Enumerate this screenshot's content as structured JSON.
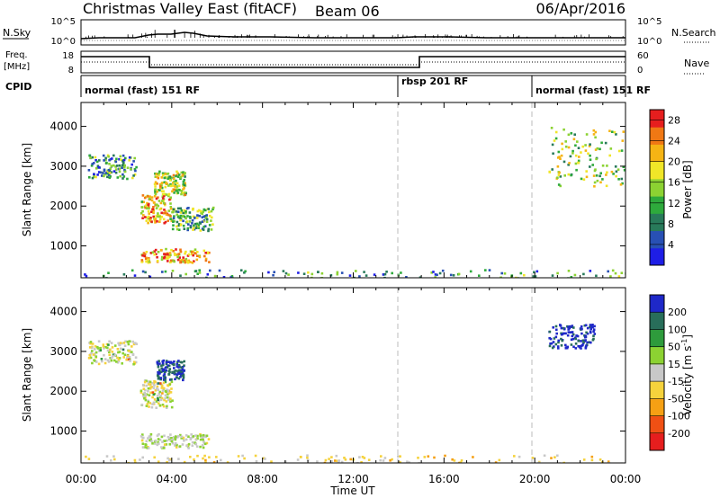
{
  "header": {
    "station": "Christmas Valley East (fitACF)",
    "beam": "Beam 06",
    "date": "06/Apr/2016"
  },
  "panels": {
    "sky": {
      "left_label": "N.Sky",
      "left_ticks": [
        "10^5",
        "10^0"
      ],
      "right_label": "N.Search",
      "right_ticks": [
        "10^5",
        "10^0"
      ]
    },
    "freq": {
      "left_label_1": "Freq.",
      "left_label_2": "[MHz]",
      "left_ticks": [
        "18",
        "8"
      ],
      "right_label": "Nave",
      "right_ticks": [
        "60",
        "0"
      ]
    },
    "cpid": {
      "label": "CPID",
      "segments": [
        "normal (fast) 151 RF",
        "rbsp 201 RF",
        "normal (fast) 151 RF"
      ]
    }
  },
  "colors": {
    "power_scale": [
      "#1e1ee6",
      "#2850b4",
      "#287a5a",
      "#2eaa3c",
      "#8cd232",
      "#f0e628",
      "#f5b414",
      "#f07814",
      "#e61e1e"
    ],
    "velocity_scale": [
      "#e61e1e",
      "#f05014",
      "#f5a014",
      "#f5d23c",
      "#c8c8c8",
      "#8cd232",
      "#2e9b3c",
      "#286e5a",
      "#1e28c8"
    ]
  },
  "chart_data": [
    {
      "type": "heatmap",
      "title": "Power",
      "ylabel": "Slant Range [km]",
      "xlabel": "Time UT",
      "x_ticks": [
        "00:00",
        "04:00",
        "08:00",
        "12:00",
        "16:00",
        "20:00",
        "00:00"
      ],
      "y_ticks": [
        "1000",
        "2000",
        "3000",
        "4000"
      ],
      "ylim": [
        200,
        4600
      ],
      "colorbar_label": "Power [dB]",
      "colorbar_ticks": [
        "4",
        "8",
        "12",
        "16",
        "20",
        "24",
        "28"
      ],
      "clim": [
        0,
        30
      ],
      "regions": [
        {
          "t": [
            0.3,
            2.4
          ],
          "r": [
            2700,
            3300
          ],
          "level": 10
        },
        {
          "t": [
            2.6,
            4.0
          ],
          "r": [
            1600,
            2300
          ],
          "level": 21
        },
        {
          "t": [
            4.0,
            5.8
          ],
          "r": [
            1400,
            2000
          ],
          "level": 12
        },
        {
          "t": [
            2.6,
            5.6
          ],
          "r": [
            600,
            950
          ],
          "level": 22
        },
        {
          "t": [
            3.2,
            4.6
          ],
          "r": [
            2300,
            2900
          ],
          "level": 17
        },
        {
          "t": [
            20.6,
            24.0
          ],
          "r": [
            2500,
            4000
          ],
          "level": 15
        },
        {
          "t": [
            0.0,
            24.0
          ],
          "r": [
            200,
            420
          ],
          "level": 9
        }
      ]
    },
    {
      "type": "heatmap",
      "title": "Velocity",
      "ylabel": "Slant Range [km]",
      "xlabel": "Time UT",
      "x_ticks": [
        "00:00",
        "04:00",
        "08:00",
        "12:00",
        "16:00",
        "20:00",
        "00:00"
      ],
      "y_ticks": [
        "1000",
        "2000",
        "3000",
        "4000"
      ],
      "ylim": [
        200,
        4600
      ],
      "colorbar_label": "Velocity [m s^-1]",
      "colorbar_ticks": [
        "200",
        "100",
        "50",
        "15",
        "-15",
        "-50",
        "-100",
        "-200"
      ],
      "clim": [
        -250,
        250
      ],
      "regions": [
        {
          "t": [
            0.3,
            2.4
          ],
          "r": [
            2700,
            3300
          ],
          "level": 0
        },
        {
          "t": [
            2.6,
            4.0
          ],
          "r": [
            1600,
            2300
          ],
          "level": 0
        },
        {
          "t": [
            2.6,
            5.6
          ],
          "r": [
            600,
            950
          ],
          "level": 20
        },
        {
          "t": [
            3.3,
            4.5
          ],
          "r": [
            2300,
            2800
          ],
          "level": 200
        },
        {
          "t": [
            20.6,
            22.6
          ],
          "r": [
            3100,
            3700
          ],
          "level": 220
        },
        {
          "t": [
            0.0,
            24.0
          ],
          "r": [
            200,
            420
          ],
          "level": -40
        }
      ]
    }
  ]
}
